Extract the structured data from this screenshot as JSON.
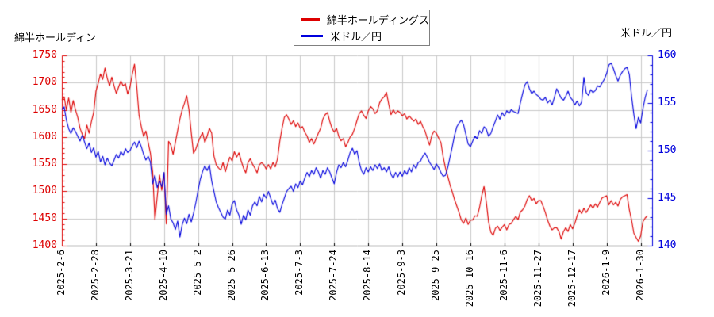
{
  "page": {
    "left_axis_title": "綿半ホールディン",
    "right_axis_title": "米ドル／円"
  },
  "legend": {
    "items": [
      {
        "label": "綿半ホールディングス",
        "color": "#dd0000"
      },
      {
        "label": "米ドル／円",
        "color": "#0000dd"
      }
    ]
  },
  "colors": {
    "background": "#ffffff",
    "grid": "#c8c8c8",
    "x_axis": "#000000",
    "x_label": "#000000",
    "legend_border": "#808080",
    "left_axis": "#dd0000",
    "right_axis": "#0000dd"
  },
  "chart_data": {
    "type": "line",
    "title": "",
    "grid": true,
    "legend_position": "top-center",
    "x_axis": {
      "tick_labels": [
        "2025-2-6",
        "2025-2-28",
        "2025-3-21",
        "2025-4-10",
        "2025-5-2",
        "2025-5-26",
        "2025-6-13",
        "2025-7-3",
        "2025-7-24",
        "2025-8-14",
        "2025-9-3",
        "2025-9-25",
        "2025-10-16",
        "2025-11-6",
        "2025-11-27",
        "2025-12-17",
        "2026-1-9",
        "2026-1-30"
      ],
      "days_per_tick": 15,
      "total_days": 258
    },
    "left_axis": {
      "label": "綿半ホールディン",
      "min": 1400,
      "max": 1750,
      "major_step": 50,
      "minor_step": 10,
      "tick_labels": [
        "1750",
        "1700",
        "1650",
        "1600",
        "1550",
        "1500",
        "1450",
        "1400"
      ],
      "color": "#dd0000"
    },
    "right_axis": {
      "label": "米ドル／円",
      "min": 140,
      "max": 160,
      "major_step": 5,
      "minor_step": 1,
      "tick_labels": [
        "160",
        "155",
        "150",
        "145",
        "140"
      ],
      "color": "#0000dd"
    },
    "series": [
      {
        "name": "綿半ホールディングス",
        "axis": "left",
        "color": "#dd0000",
        "start_day": 0,
        "step_days": 1,
        "values": [
          1668,
          1674,
          1650,
          1672,
          1645,
          1667,
          1650,
          1636,
          1616,
          1605,
          1597,
          1622,
          1607,
          1628,
          1645,
          1684,
          1699,
          1716,
          1706,
          1727,
          1708,
          1694,
          1710,
          1694,
          1680,
          1692,
          1703,
          1694,
          1698,
          1679,
          1692,
          1715,
          1734,
          1692,
          1640,
          1619,
          1601,
          1611,
          1590,
          1570,
          1536,
          1448,
          1490,
          1530,
          1502,
          1534,
          1440,
          1592,
          1585,
          1568,
          1590,
          1612,
          1633,
          1650,
          1662,
          1676,
          1650,
          1608,
          1570,
          1578,
          1590,
          1600,
          1608,
          1590,
          1602,
          1616,
          1607,
          1565,
          1549,
          1543,
          1539,
          1553,
          1536,
          1550,
          1563,
          1556,
          1573,
          1563,
          1571,
          1556,
          1543,
          1534,
          1553,
          1560,
          1550,
          1543,
          1534,
          1549,
          1553,
          1549,
          1541,
          1549,
          1541,
          1553,
          1545,
          1560,
          1592,
          1616,
          1636,
          1641,
          1633,
          1623,
          1630,
          1619,
          1626,
          1616,
          1619,
          1609,
          1602,
          1590,
          1597,
          1587,
          1597,
          1607,
          1616,
          1633,
          1641,
          1645,
          1629,
          1616,
          1609,
          1616,
          1601,
          1593,
          1597,
          1582,
          1590,
          1600,
          1605,
          1616,
          1630,
          1643,
          1648,
          1640,
          1634,
          1648,
          1656,
          1652,
          1643,
          1648,
          1663,
          1670,
          1674,
          1682,
          1660,
          1641,
          1650,
          1643,
          1648,
          1645,
          1639,
          1643,
          1633,
          1639,
          1634,
          1629,
          1633,
          1623,
          1629,
          1619,
          1611,
          1597,
          1585,
          1603,
          1611,
          1607,
          1598,
          1590,
          1563,
          1543,
          1528,
          1512,
          1499,
          1485,
          1473,
          1461,
          1447,
          1441,
          1451,
          1439,
          1447,
          1447,
          1455,
          1454,
          1470,
          1492,
          1509,
          1480,
          1444,
          1425,
          1419,
          1432,
          1436,
          1428,
          1434,
          1439,
          1429,
          1439,
          1441,
          1448,
          1454,
          1448,
          1462,
          1466,
          1473,
          1485,
          1492,
          1483,
          1487,
          1477,
          1483,
          1483,
          1473,
          1461,
          1447,
          1436,
          1429,
          1433,
          1433,
          1426,
          1412,
          1426,
          1433,
          1426,
          1439,
          1431,
          1441,
          1455,
          1466,
          1459,
          1469,
          1461,
          1468,
          1475,
          1469,
          1477,
          1471,
          1480,
          1488,
          1490,
          1492,
          1475,
          1483,
          1475,
          1480,
          1473,
          1485,
          1490,
          1492,
          1494,
          1466,
          1447,
          1423,
          1415,
          1408,
          1418,
          1444,
          1451,
          1455
        ]
      },
      {
        "name": "米ドル／円",
        "axis": "right",
        "color": "#0000dd",
        "start_day": 0,
        "step_days": 1,
        "values": [
          154.3,
          154.6,
          153.2,
          152.3,
          151.8,
          152.4,
          152.0,
          151.5,
          151.0,
          151.6,
          150.9,
          150.2,
          150.8,
          149.8,
          150.3,
          149.3,
          149.9,
          148.8,
          149.4,
          148.5,
          149.2,
          148.7,
          148.4,
          149.0,
          149.6,
          149.2,
          149.9,
          149.5,
          150.2,
          149.8,
          150.0,
          150.5,
          150.9,
          150.3,
          151.0,
          150.4,
          149.6,
          149.0,
          149.4,
          148.8,
          146.5,
          147.4,
          146.1,
          146.8,
          146.2,
          147.7,
          143.3,
          144.2,
          142.8,
          142.4,
          141.7,
          142.6,
          140.9,
          142.2,
          142.9,
          142.3,
          143.3,
          142.5,
          143.4,
          144.5,
          145.8,
          147.0,
          147.8,
          148.4,
          147.9,
          148.5,
          146.8,
          145.7,
          144.6,
          144.0,
          143.5,
          143.0,
          142.8,
          143.75,
          143.2,
          144.4,
          144.75,
          143.75,
          143.2,
          142.25,
          143.2,
          142.7,
          143.75,
          143.2,
          144.2,
          144.6,
          144.2,
          145.2,
          144.6,
          145.4,
          145.0,
          145.7,
          145.0,
          144.3,
          144.8,
          143.9,
          143.5,
          144.3,
          145.0,
          145.7,
          146.0,
          146.25,
          145.7,
          146.5,
          146.1,
          146.8,
          146.4,
          147.1,
          147.7,
          147.25,
          147.9,
          147.5,
          148.2,
          147.75,
          147.1,
          147.9,
          147.5,
          148.2,
          147.75,
          147.1,
          146.5,
          147.7,
          148.5,
          148.2,
          148.75,
          148.3,
          149.0,
          149.8,
          150.25,
          149.6,
          150.0,
          148.75,
          147.9,
          147.5,
          148.2,
          147.75,
          148.3,
          147.9,
          148.5,
          148.1,
          148.6,
          147.9,
          148.2,
          147.75,
          148.3,
          147.5,
          147.1,
          147.7,
          147.25,
          147.75,
          147.3,
          147.9,
          147.5,
          148.2,
          147.75,
          148.5,
          148.1,
          148.75,
          148.9,
          149.4,
          149.75,
          149.3,
          148.75,
          148.4,
          148.0,
          148.6,
          148.2,
          147.7,
          147.3,
          147.4,
          148.2,
          149.3,
          150.4,
          151.6,
          152.5,
          152.9,
          153.2,
          152.7,
          151.7,
          150.7,
          150.4,
          151.0,
          151.5,
          151.25,
          152.1,
          151.8,
          152.5,
          152.25,
          151.5,
          151.8,
          152.5,
          153.1,
          153.75,
          153.3,
          154.0,
          153.6,
          154.2,
          153.9,
          154.3,
          154.1,
          154.0,
          153.9,
          155.0,
          156.0,
          156.9,
          157.25,
          156.5,
          156.0,
          156.25,
          155.9,
          155.7,
          155.4,
          155.3,
          155.6,
          155.0,
          155.3,
          154.8,
          155.6,
          156.5,
          156.0,
          155.5,
          155.3,
          155.7,
          156.25,
          155.6,
          155.3,
          154.8,
          155.2,
          154.7,
          155.1,
          157.7,
          156.1,
          155.8,
          156.4,
          156.1,
          156.3,
          156.8,
          156.7,
          157.1,
          157.5,
          158.1,
          159.0,
          159.2,
          158.6,
          157.9,
          157.3,
          157.9,
          158.3,
          158.6,
          158.75,
          158.0,
          155.7,
          153.8,
          152.3,
          153.5,
          152.9,
          154.4,
          155.6,
          156.4
        ]
      }
    ]
  }
}
